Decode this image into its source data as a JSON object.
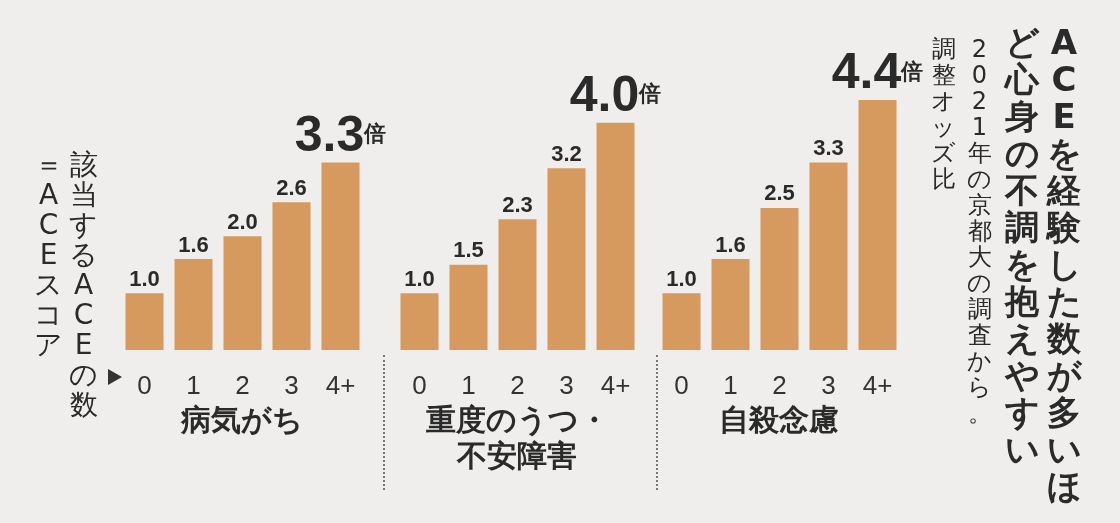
{
  "chart_data": [
    {
      "type": "bar",
      "xlabel": "病気がち",
      "annotations": [
        "該当するACEの数＝ACEスコア"
      ],
      "categories": [
        "0",
        "1",
        "2",
        "3",
        "4+"
      ],
      "values": [
        1.0,
        1.6,
        2.0,
        2.6,
        3.3
      ],
      "value_labels": [
        "1.0",
        "1.6",
        "2.0",
        "2.6",
        "3.3倍"
      ],
      "color": "#d69a5e"
    },
    {
      "type": "bar",
      "xlabel": "重度のうつ・不安障害",
      "categories": [
        "0",
        "1",
        "2",
        "3",
        "4+"
      ],
      "values": [
        1.0,
        1.5,
        2.3,
        3.2,
        4.0
      ],
      "value_labels": [
        "1.0",
        "1.5",
        "2.3",
        "3.2",
        "4.0倍"
      ],
      "color": "#d69a5e"
    },
    {
      "type": "bar",
      "title": "ACEを経験した数が多いほど心身の不調を抱えやすい",
      "subtitle": "2021年の京都大の調査から。",
      "ylabel": "調整オッズ比",
      "xlabel": "自殺念慮",
      "categories": [
        "0",
        "1",
        "2",
        "3",
        "4+"
      ],
      "values": [
        1.0,
        1.6,
        2.5,
        3.3,
        4.4
      ],
      "value_labels": [
        "1.0",
        "1.6",
        "2.5",
        "3.3",
        "4.4倍"
      ],
      "color": "#d69a5e"
    }
  ]
}
